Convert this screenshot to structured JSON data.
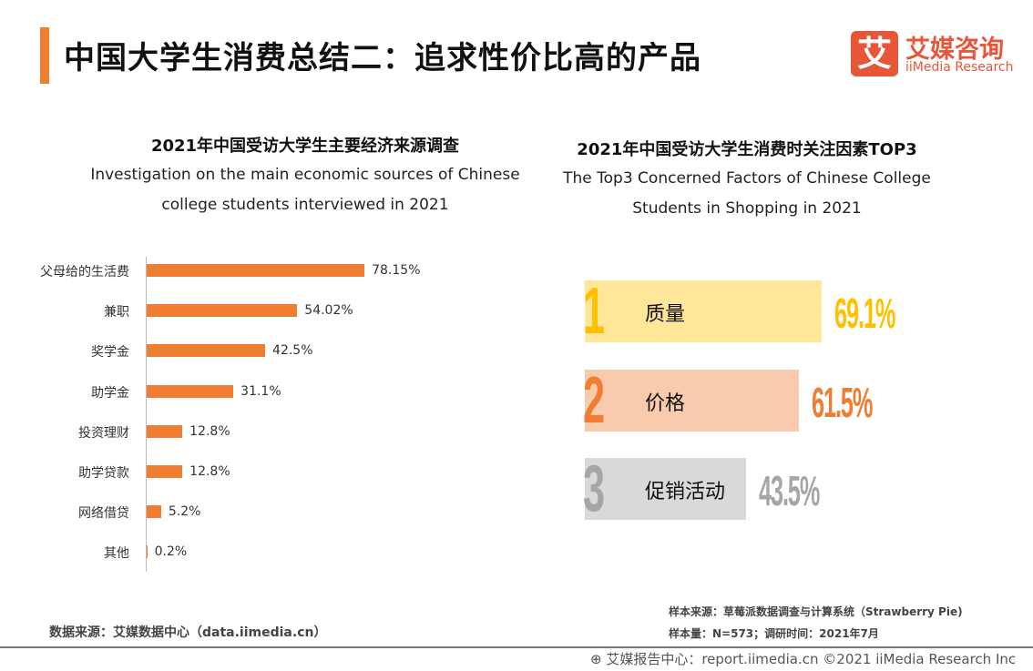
{
  "header": {
    "title": "中国大学生消费总结二：追求性价比高的产品",
    "logo_mark": "艾",
    "logo_cn": "艾媒咨询",
    "logo_en": "iiMedia Research"
  },
  "chart_data": [
    {
      "type": "bar",
      "orientation": "horizontal",
      "title": "2021年中国受访大学生主要经济来源调查",
      "subtitle": [
        "Investigation on the main economic sources of Chinese",
        "college students interviewed in 2021"
      ],
      "categories": [
        "父母给的生活费",
        "兼职",
        "奖学金",
        "助学金",
        "投资理财",
        "助学贷款",
        "网络借贷",
        "其他"
      ],
      "values": [
        78.15,
        54.02,
        42.5,
        31.1,
        12.8,
        12.8,
        5.2,
        0.2
      ],
      "labels": [
        "78.15%",
        "54.02%",
        "42.5%",
        "31.1%",
        "12.8%",
        "12.8%",
        "5.2%",
        "0.2%"
      ],
      "color": "#ef7d32"
    },
    {
      "type": "bar",
      "orientation": "horizontal",
      "title": "2021年中国受访大学生消费时关注因素TOP3",
      "subtitle": [
        "The Top3 Concerned Factors of Chinese College",
        "Students in Shopping in 2021"
      ],
      "items": [
        {
          "rank": "1",
          "label": "质量",
          "value": 69.1,
          "text": "69.1%",
          "color": "#ffc000",
          "bg": "#ffe699"
        },
        {
          "rank": "2",
          "label": "价格",
          "value": 61.5,
          "text": "61.5%",
          "color": "#ef7d32",
          "bg": "#f8cbad"
        },
        {
          "rank": "3",
          "label": "促销活动",
          "value": 43.5,
          "text": "43.5%",
          "color": "#a6a6a6",
          "bg": "#d9d9d9"
        }
      ]
    }
  ],
  "footer": {
    "source": "数据来源：艾媒数据中心（data.iimedia.cn）",
    "sample_source": "样本来源：草莓派数据调查与计算系统（Strawberry Pie)",
    "sample_size": "样本量：N=573；调研时间：2021年7月",
    "copyright": "艾媒报告中心：report.iimedia.cn   ©2021  iiMedia Research  Inc",
    "globe_icon": "globe-icon"
  }
}
